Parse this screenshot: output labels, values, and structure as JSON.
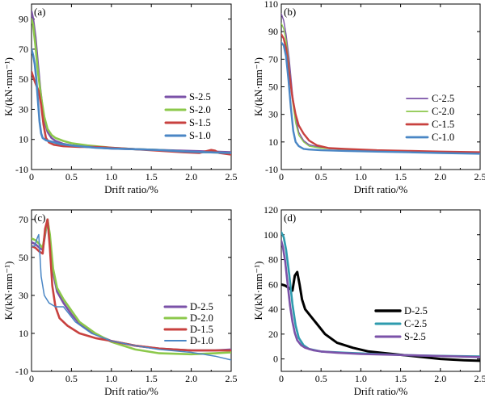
{
  "colors": {
    "purple": "#7B52A8",
    "green": "#8CC84B",
    "red": "#C8413F",
    "blue": "#4A86C5",
    "teal": "#2E9BAE",
    "black": "#000000",
    "axis": "#000000"
  },
  "chart_data": [
    {
      "type": "line",
      "panel_label": "(a)",
      "xlabel": "Drift ratio/%",
      "ylabel": "K/(kN·mm⁻¹)",
      "xlim": [
        0,
        2.5
      ],
      "ylim": [
        -10,
        100
      ],
      "x_ticks": [
        0,
        0.5,
        1.0,
        1.5,
        2.0,
        2.5
      ],
      "x_tick_labels": [
        "0",
        "0.5",
        "1.0",
        "1.5",
        "2.0",
        "2.5"
      ],
      "y_ticks": [
        -10,
        10,
        30,
        50,
        70,
        90
      ],
      "y_tick_labels": [
        "-10",
        "10",
        "30",
        "50",
        "70",
        "90"
      ],
      "legend_position": "center-right",
      "series": [
        {
          "name": "S-2.5",
          "color": "#7B52A8",
          "width": 2.6,
          "x": [
            0,
            0.02,
            0.05,
            0.08,
            0.11,
            0.14,
            0.17,
            0.2,
            0.25,
            0.3,
            0.4,
            0.5,
            0.7,
            1.0,
            1.3,
            1.6,
            1.9,
            2.2,
            2.5
          ],
          "y": [
            95,
            90,
            78,
            60,
            43,
            30,
            21,
            15,
            11,
            9,
            7,
            6,
            5,
            4,
            3.5,
            3,
            2.5,
            2,
            1.5
          ]
        },
        {
          "name": "S-2.0",
          "color": "#8CC84B",
          "width": 2.6,
          "x": [
            0,
            0.02,
            0.05,
            0.08,
            0.12,
            0.16,
            0.2,
            0.25,
            0.3,
            0.4,
            0.5,
            0.7,
            1.0,
            1.3,
            1.6,
            1.9,
            2.0,
            2.2,
            2.5
          ],
          "y": [
            90,
            86,
            72,
            55,
            38,
            25,
            17,
            13,
            11,
            9,
            7.5,
            6,
            4.5,
            3.5,
            3,
            2,
            1.5,
            1.5,
            1
          ]
        },
        {
          "name": "S-1.5",
          "color": "#C8413F",
          "width": 2.6,
          "x": [
            0,
            0.03,
            0.06,
            0.09,
            0.12,
            0.15,
            0.18,
            0.22,
            0.28,
            0.4,
            0.6,
            0.8,
            1.0,
            1.3,
            1.6,
            1.9,
            2.1,
            2.25,
            2.3,
            2.35,
            2.5
          ],
          "y": [
            55,
            50,
            46,
            42,
            33,
            20,
            11,
            8,
            6.5,
            5.5,
            5,
            5,
            4.5,
            3.5,
            2.5,
            1.5,
            1,
            3,
            2.5,
            1,
            0
          ]
        },
        {
          "name": "S-1.0",
          "color": "#4A86C5",
          "width": 2.6,
          "x": [
            0,
            0.02,
            0.04,
            0.06,
            0.08,
            0.1,
            0.12,
            0.14,
            0.18,
            0.25,
            0.35,
            0.5,
            0.8,
            1.0,
            1.3,
            1.6,
            1.9,
            2.2,
            2.5
          ],
          "y": [
            70,
            66,
            60,
            50,
            36,
            22,
            14,
            11,
            9.5,
            8.5,
            7,
            6,
            4.5,
            4,
            3.5,
            3,
            2,
            1.5,
            1
          ]
        }
      ]
    },
    {
      "type": "line",
      "panel_label": "(b)",
      "xlabel": "Drift ratio/%",
      "ylabel": "K/(kN·mm⁻¹)",
      "xlim": [
        0,
        2.5
      ],
      "ylim": [
        -10,
        110
      ],
      "x_ticks": [
        0,
        0.5,
        1.0,
        1.5,
        2.0,
        2.5
      ],
      "x_tick_labels": [
        "0",
        "0.5",
        "1.0",
        "1.5",
        "2.0",
        "2.5"
      ],
      "y_ticks": [
        -10,
        10,
        30,
        50,
        70,
        90,
        110
      ],
      "y_tick_labels": [
        "-10",
        "10",
        "30",
        "50",
        "70",
        "90",
        "110"
      ],
      "legend_position": "center-right",
      "series": [
        {
          "name": "C-2.5",
          "color": "#7B52A8",
          "width": 1.4,
          "x": [
            0,
            0.03,
            0.06,
            0.1,
            0.14,
            0.18,
            0.22,
            0.28,
            0.35,
            0.5,
            0.8,
            1.2,
            1.6,
            2.0,
            2.5
          ],
          "y": [
            103,
            98,
            88,
            70,
            45,
            28,
            17,
            11,
            8,
            6,
            5,
            4,
            3,
            2.5,
            2
          ]
        },
        {
          "name": "C-2.0",
          "color": "#8CC84B",
          "width": 1.4,
          "x": [
            0,
            0.03,
            0.06,
            0.1,
            0.14,
            0.18,
            0.22,
            0.28,
            0.35,
            0.5,
            0.8,
            1.2,
            1.6,
            2.0,
            2.5
          ],
          "y": [
            96,
            92,
            84,
            64,
            40,
            24,
            15,
            10,
            7,
            5.5,
            4.5,
            3.5,
            3,
            2.5,
            2
          ]
        },
        {
          "name": "C-1.5",
          "color": "#C8413F",
          "width": 2.4,
          "x": [
            0,
            0.03,
            0.06,
            0.1,
            0.14,
            0.18,
            0.22,
            0.28,
            0.35,
            0.45,
            0.6,
            0.8,
            1.2,
            1.6,
            2.0,
            2.5
          ],
          "y": [
            88,
            85,
            78,
            60,
            42,
            30,
            22,
            16,
            11,
            7.5,
            5.5,
            5,
            4,
            3.5,
            3,
            2.5
          ]
        },
        {
          "name": "C-1.0",
          "color": "#4A86C5",
          "width": 2.4,
          "x": [
            0,
            0.03,
            0.06,
            0.09,
            0.12,
            0.15,
            0.18,
            0.22,
            0.28,
            0.35,
            0.5,
            0.8,
            1.2,
            1.6,
            2.0,
            2.5
          ],
          "y": [
            82,
            80,
            72,
            55,
            35,
            18,
            10,
            7,
            5,
            4.5,
            4,
            3.5,
            3,
            2.5,
            2,
            1.5
          ]
        }
      ]
    },
    {
      "type": "line",
      "panel_label": "(c)",
      "xlabel": "Drift ratio/%",
      "ylabel": "K/(kN·mm⁻¹)",
      "xlim": [
        0,
        2.5
      ],
      "ylim": [
        -10,
        75
      ],
      "x_ticks": [
        0,
        0.5,
        1.0,
        1.5,
        2.0,
        2.5
      ],
      "x_tick_labels": [
        "0",
        "0.5",
        "1.0",
        "1.5",
        "2.0",
        "2.5"
      ],
      "y_ticks": [
        -10,
        10,
        30,
        50,
        70
      ],
      "y_tick_labels": [
        "-10",
        "10",
        "30",
        "50",
        "70"
      ],
      "legend_position": "center-right",
      "series": [
        {
          "name": "D-2.5",
          "color": "#7B52A8",
          "width": 2.6,
          "x": [
            0,
            0.05,
            0.1,
            0.14,
            0.17,
            0.2,
            0.23,
            0.27,
            0.32,
            0.4,
            0.5,
            0.6,
            0.8,
            1.0,
            1.3,
            1.6,
            2.0,
            2.3,
            2.5
          ],
          "y": [
            58,
            57,
            55,
            54,
            62,
            70,
            60,
            42,
            32,
            26,
            20,
            15,
            9.5,
            6,
            3.5,
            2,
            1,
            1,
            1.5
          ]
        },
        {
          "name": "D-2.0",
          "color": "#8CC84B",
          "width": 2.6,
          "x": [
            0,
            0.05,
            0.1,
            0.14,
            0.17,
            0.2,
            0.23,
            0.27,
            0.32,
            0.4,
            0.5,
            0.6,
            0.8,
            1.0,
            1.3,
            1.6,
            2.0,
            2.3,
            2.5
          ],
          "y": [
            60,
            59,
            57,
            55,
            63,
            70,
            62,
            44,
            34,
            28,
            22,
            16,
            10,
            5.5,
            1.5,
            -0.5,
            -1,
            -0.5,
            0
          ]
        },
        {
          "name": "D-1.5",
          "color": "#C8413F",
          "width": 2.6,
          "x": [
            0,
            0.05,
            0.1,
            0.14,
            0.17,
            0.2,
            0.23,
            0.26,
            0.3,
            0.35,
            0.45,
            0.6,
            0.8,
            1.0,
            1.3,
            1.6,
            2.0,
            2.3,
            2.5
          ],
          "y": [
            56,
            55,
            53,
            52,
            65,
            70,
            55,
            35,
            24,
            18,
            14,
            10,
            7.5,
            6,
            3.5,
            2,
            1,
            1,
            1
          ]
        },
        {
          "name": "D-1.0",
          "color": "#4A86C5",
          "width": 1.5,
          "x": [
            0,
            0.04,
            0.07,
            0.09,
            0.1,
            0.12,
            0.16,
            0.22,
            0.3,
            0.4,
            0.55,
            0.75,
            1.0,
            1.3,
            1.6,
            2.0,
            2.3,
            2.5
          ],
          "y": [
            56,
            56,
            60,
            62,
            55,
            40,
            30,
            26,
            24,
            24,
            16,
            10,
            6,
            3.5,
            1.5,
            0,
            -2,
            -4
          ]
        }
      ]
    },
    {
      "type": "line",
      "panel_label": "(d)",
      "xlabel": "Drift ratio/%",
      "ylabel": "K/(kN·mm⁻¹)",
      "xlim": [
        0,
        2.5
      ],
      "ylim": [
        -10,
        120
      ],
      "x_ticks": [
        0,
        0.5,
        1.0,
        1.5,
        2.0,
        2.5
      ],
      "x_tick_labels": [
        "0",
        "0.5",
        "1.0",
        "1.5",
        "2.0",
        "2.5"
      ],
      "y_ticks": [
        0,
        20,
        40,
        60,
        80,
        100,
        120
      ],
      "y_tick_labels": [
        "0",
        "20",
        "40",
        "60",
        "80",
        "100",
        "120"
      ],
      "legend_position": "lower-right",
      "series": [
        {
          "name": "D-2.5",
          "color": "#000000",
          "width": 3,
          "x": [
            0,
            0.05,
            0.1,
            0.14,
            0.17,
            0.2,
            0.23,
            0.26,
            0.3,
            0.35,
            0.4,
            0.45,
            0.55,
            0.7,
            0.9,
            1.1,
            1.4,
            1.7,
            2.0,
            2.3,
            2.5
          ],
          "y": [
            60,
            59,
            57,
            55,
            67,
            70,
            60,
            48,
            40,
            36,
            32,
            28,
            20,
            13,
            9,
            6,
            4,
            2,
            0,
            -1,
            -1.5
          ]
        },
        {
          "name": "C-2.5",
          "color": "#2E9BAE",
          "width": 2.6,
          "x": [
            0,
            0.03,
            0.06,
            0.1,
            0.14,
            0.18,
            0.22,
            0.28,
            0.35,
            0.5,
            0.8,
            1.2,
            1.6,
            2.0,
            2.5
          ],
          "y": [
            102,
            98,
            88,
            68,
            44,
            27,
            17,
            11,
            8,
            6,
            5,
            4,
            3,
            2.5,
            2
          ]
        },
        {
          "name": "S-2.5",
          "color": "#7B52A8",
          "width": 2.6,
          "x": [
            0,
            0.02,
            0.05,
            0.08,
            0.11,
            0.14,
            0.17,
            0.2,
            0.25,
            0.3,
            0.4,
            0.5,
            0.7,
            1.0,
            1.3,
            1.6,
            1.9,
            2.2,
            2.5
          ],
          "y": [
            95,
            90,
            78,
            60,
            43,
            30,
            21,
            15,
            11,
            9,
            7,
            6,
            5,
            4,
            3.5,
            3,
            2.5,
            2,
            1.5
          ]
        }
      ]
    }
  ]
}
